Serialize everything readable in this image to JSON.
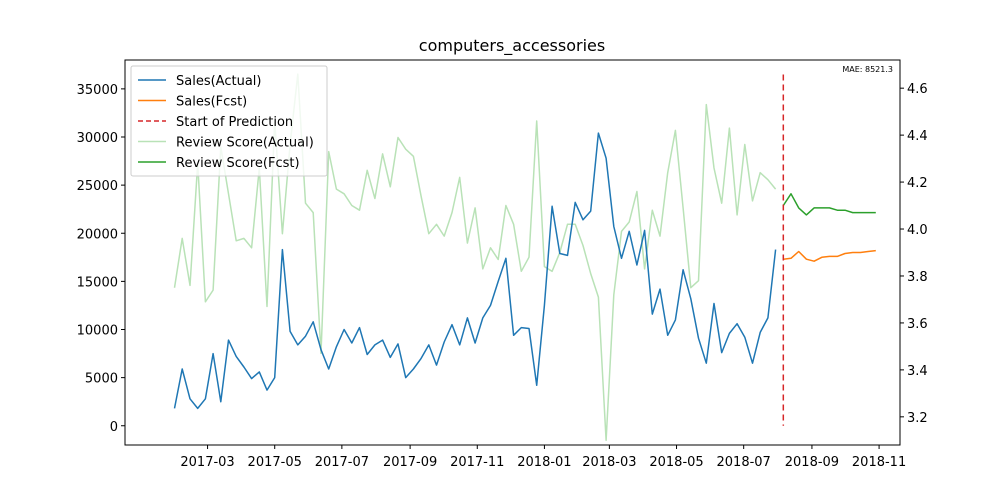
{
  "chart_data": {
    "type": "line",
    "title": "computers_accessories",
    "annotation": "MAE: 8521.3",
    "xlabel": "",
    "ylabel": "",
    "x_axis": {
      "type": "date",
      "range": [
        "2016-12-16",
        "2018-11-20"
      ],
      "ticks": [
        {
          "date": "2017-03-01",
          "label": "2017-03"
        },
        {
          "date": "2017-05-01",
          "label": "2017-05"
        },
        {
          "date": "2017-07-01",
          "label": "2017-07"
        },
        {
          "date": "2017-09-01",
          "label": "2017-09"
        },
        {
          "date": "2017-11-01",
          "label": "2017-11"
        },
        {
          "date": "2018-01-01",
          "label": "2018-01"
        },
        {
          "date": "2018-03-01",
          "label": "2018-03"
        },
        {
          "date": "2018-05-01",
          "label": "2018-05"
        },
        {
          "date": "2018-07-01",
          "label": "2018-07"
        },
        {
          "date": "2018-09-01",
          "label": "2018-09"
        },
        {
          "date": "2018-11-01",
          "label": "2018-11"
        }
      ]
    },
    "y_left": {
      "ylim": [
        -2000,
        38000
      ],
      "ticks": [
        0,
        5000,
        10000,
        15000,
        20000,
        25000,
        30000,
        35000
      ]
    },
    "y_right": {
      "ylim": [
        3.08,
        4.72
      ],
      "ticks": [
        3.2,
        3.4,
        3.6,
        3.8,
        4.0,
        4.2,
        4.4,
        4.6
      ],
      "tick_labels": [
        "3.2",
        "3.4",
        "3.6",
        "3.8",
        "4.0",
        "4.2",
        "4.4",
        "4.6"
      ]
    },
    "legend": {
      "placement": "upper-left",
      "entries": [
        "Sales(Actual)",
        "Sales(Fcst)",
        "Start of Prediction",
        "Review Score(Actual)",
        "Review Score(Fcst)"
      ]
    },
    "prediction_start": "2018-08-06",
    "series": [
      {
        "name": "Sales(Actual)",
        "axis": "left",
        "color": "#1f77b4",
        "start": "2017-01-30",
        "step_days": 7,
        "values": [
          1800,
          5900,
          2800,
          1800,
          2800,
          7500,
          2500,
          8900,
          7200,
          6100,
          4900,
          5600,
          3700,
          5000,
          18300,
          9800,
          8400,
          9300,
          10800,
          7900,
          5900,
          8200,
          10000,
          8600,
          10200,
          7400,
          8400,
          8900,
          7100,
          8500,
          5000,
          5900,
          7000,
          8400,
          6300,
          8700,
          10500,
          8400,
          11200,
          8600,
          11200,
          12500,
          15000,
          17400,
          9400,
          10200,
          10100,
          4200,
          12500,
          22800,
          17900,
          17700,
          23200,
          21400,
          22300,
          30400,
          27800,
          20700,
          17400,
          20200,
          16700,
          20300,
          11600,
          14200,
          9400,
          11000,
          16200,
          13200,
          9100,
          6500,
          12700,
          7600,
          9600,
          10600,
          9200,
          6500,
          9700,
          11200,
          18300
        ]
      },
      {
        "name": "Sales(Fcst)",
        "axis": "left",
        "color": "#ff7f0e",
        "start": "2018-08-06",
        "step_days": 7,
        "values": [
          17300,
          17400,
          18100,
          17300,
          17100,
          17500,
          17600,
          17600,
          17900,
          18000,
          18000,
          18100,
          18200
        ]
      },
      {
        "name": "Review Score(Actual)",
        "axis": "right",
        "color": "#b9e2b7",
        "start": "2017-01-30",
        "step_days": 7,
        "values": [
          3.75,
          3.96,
          3.76,
          4.28,
          3.69,
          3.74,
          4.35,
          4.15,
          3.95,
          3.96,
          3.92,
          4.26,
          3.67,
          4.46,
          3.98,
          4.36,
          4.66,
          4.11,
          4.07,
          3.47,
          4.33,
          4.17,
          4.15,
          4.1,
          4.08,
          4.25,
          4.13,
          4.32,
          4.18,
          4.39,
          4.34,
          4.31,
          4.14,
          3.98,
          4.02,
          3.97,
          4.07,
          4.22,
          3.94,
          4.09,
          3.83,
          3.92,
          3.87,
          4.1,
          4.02,
          3.82,
          3.88,
          4.46,
          3.84,
          3.82,
          3.9,
          4.02,
          4.02,
          3.93,
          3.81,
          3.71,
          3.1,
          3.72,
          3.99,
          4.03,
          4.16,
          3.83,
          4.08,
          3.97,
          4.24,
          4.42,
          4.09,
          3.75,
          3.78,
          4.53,
          4.26,
          4.11,
          4.43,
          4.06,
          4.36,
          4.12,
          4.24,
          4.21,
          4.17
        ]
      },
      {
        "name": "Review Score(Fcst)",
        "axis": "right",
        "color": "#2ca02c",
        "start": "2018-08-06",
        "step_days": 7,
        "values": [
          4.1,
          4.15,
          4.09,
          4.06,
          4.09,
          4.09,
          4.09,
          4.08,
          4.08,
          4.07,
          4.07,
          4.07,
          4.07
        ]
      }
    ]
  }
}
